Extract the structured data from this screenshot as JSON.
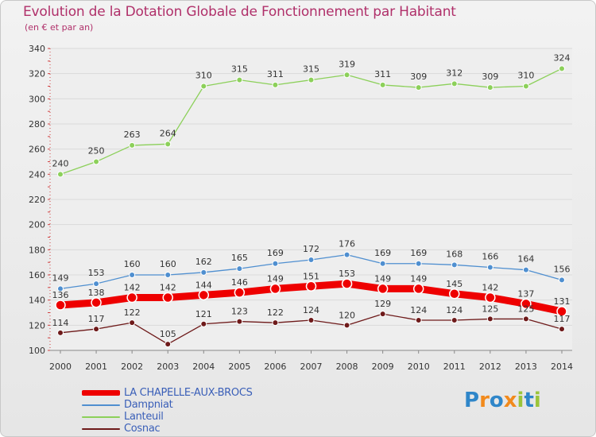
{
  "chart_data": {
    "type": "line",
    "title": "Evolution de la Dotation Globale de Fonctionnement par Habitant",
    "subtitle": "(en € et par an)",
    "xlabel": "",
    "ylabel": "",
    "x": [
      "2000",
      "2001",
      "2002",
      "2003",
      "2004",
      "2005",
      "2006",
      "2007",
      "2008",
      "2009",
      "2010",
      "2011",
      "2012",
      "2013",
      "2014"
    ],
    "ylim": [
      100,
      340
    ],
    "yticks": [
      "100",
      "120",
      "140",
      "160",
      "180",
      "200",
      "220",
      "240",
      "260",
      "280",
      "300",
      "320",
      "340"
    ],
    "series": [
      {
        "name": "LA CHAPELLE-AUX-BROCS",
        "color": "#ee0000",
        "values": [
          136,
          138,
          142,
          142,
          144,
          146,
          149,
          151,
          153,
          149,
          149,
          145,
          142,
          137,
          131
        ]
      },
      {
        "name": "Dampniat",
        "color": "#4f8fd0",
        "values": [
          149,
          153,
          160,
          160,
          162,
          165,
          169,
          172,
          176,
          169,
          169,
          168,
          166,
          164,
          156
        ]
      },
      {
        "name": "Lanteuil",
        "color": "#8cd05a",
        "values": [
          240,
          250,
          263,
          264,
          310,
          315,
          311,
          315,
          319,
          311,
          309,
          312,
          309,
          310,
          324
        ]
      },
      {
        "name": "Cosnac",
        "color": "#6e1a1a",
        "values": [
          114,
          117,
          122,
          105,
          121,
          123,
          122,
          124,
          120,
          129,
          124,
          124,
          125,
          125,
          117
        ]
      }
    ],
    "legend_position": "bottom-left"
  },
  "logo": {
    "p": "P",
    "r": "r",
    "o": "o",
    "x": "x",
    "i1": "i",
    "t": "t",
    "i2": "i"
  }
}
